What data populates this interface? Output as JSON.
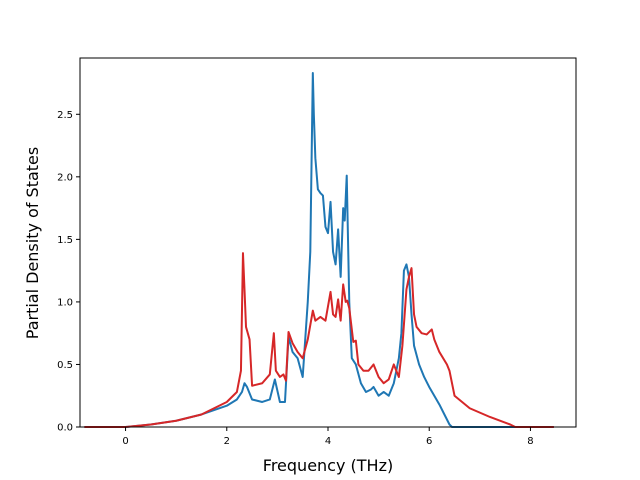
{
  "chart_data": {
    "type": "line",
    "title": "",
    "xlabel": "Frequency (THz)",
    "ylabel": "Partial Density of States",
    "xlim": [
      -0.9,
      8.9
    ],
    "ylim": [
      0.0,
      2.95
    ],
    "xticks": [
      0,
      2,
      4,
      6,
      8
    ],
    "yticks": [
      0.0,
      0.5,
      1.0,
      1.5,
      2.0,
      2.5
    ],
    "xtick_labels": [
      "0",
      "2",
      "4",
      "6",
      "8"
    ],
    "ytick_labels": [
      "0.0",
      "0.5",
      "1.0",
      "1.5",
      "2.0",
      "2.5"
    ],
    "grid": false,
    "series": [
      {
        "color": "#1f77b4",
        "x": [
          -0.8,
          0.0,
          0.5,
          1.0,
          1.5,
          2.0,
          2.2,
          2.3,
          2.35,
          2.4,
          2.5,
          2.7,
          2.85,
          2.95,
          3.05,
          3.15,
          3.22,
          3.3,
          3.4,
          3.5,
          3.6,
          3.65,
          3.7,
          3.72,
          3.75,
          3.8,
          3.85,
          3.9,
          3.95,
          4.0,
          4.05,
          4.1,
          4.15,
          4.2,
          4.25,
          4.3,
          4.33,
          4.37,
          4.42,
          4.47,
          4.55,
          4.65,
          4.75,
          4.85,
          4.9,
          5.0,
          5.1,
          5.2,
          5.3,
          5.4,
          5.45,
          5.5,
          5.55,
          5.6,
          5.65,
          5.7,
          5.8,
          5.9,
          6.0,
          6.1,
          6.2,
          6.3,
          6.4,
          6.45,
          6.55,
          7.0,
          8.45
        ],
        "y": [
          0.0,
          0.0,
          0.02,
          0.05,
          0.1,
          0.17,
          0.22,
          0.28,
          0.35,
          0.32,
          0.22,
          0.2,
          0.22,
          0.38,
          0.2,
          0.2,
          0.72,
          0.6,
          0.55,
          0.4,
          1.0,
          1.4,
          2.83,
          2.5,
          2.15,
          1.9,
          1.87,
          1.85,
          1.6,
          1.55,
          1.8,
          1.4,
          1.3,
          1.58,
          1.2,
          1.75,
          1.65,
          2.01,
          1.0,
          0.55,
          0.5,
          0.35,
          0.28,
          0.3,
          0.32,
          0.25,
          0.28,
          0.25,
          0.35,
          0.55,
          0.75,
          1.25,
          1.3,
          1.2,
          0.9,
          0.65,
          0.5,
          0.4,
          0.32,
          0.25,
          0.18,
          0.1,
          0.02,
          0.0,
          0.0,
          0.0,
          0.0
        ]
      },
      {
        "color": "#d62728",
        "x": [
          -0.8,
          0.0,
          0.5,
          1.0,
          1.5,
          2.0,
          2.2,
          2.28,
          2.32,
          2.35,
          2.38,
          2.45,
          2.5,
          2.7,
          2.85,
          2.93,
          2.97,
          3.05,
          3.12,
          3.17,
          3.22,
          3.3,
          3.4,
          3.5,
          3.6,
          3.7,
          3.75,
          3.85,
          3.95,
          4.05,
          4.1,
          4.15,
          4.2,
          4.25,
          4.3,
          4.35,
          4.38,
          4.42,
          4.5,
          4.55,
          4.6,
          4.7,
          4.8,
          4.9,
          5.0,
          5.1,
          5.2,
          5.3,
          5.4,
          5.47,
          5.55,
          5.6,
          5.65,
          5.7,
          5.75,
          5.85,
          5.95,
          6.05,
          6.1,
          6.2,
          6.35,
          6.4,
          6.5,
          6.8,
          7.2,
          7.6,
          7.7,
          8.45
        ],
        "y": [
          0.0,
          0.0,
          0.02,
          0.05,
          0.1,
          0.2,
          0.28,
          0.45,
          1.39,
          1.1,
          0.8,
          0.7,
          0.33,
          0.35,
          0.42,
          0.75,
          0.45,
          0.4,
          0.42,
          0.37,
          0.76,
          0.67,
          0.6,
          0.55,
          0.7,
          0.93,
          0.85,
          0.88,
          0.85,
          1.08,
          0.9,
          0.88,
          1.02,
          0.85,
          1.14,
          1.0,
          1.01,
          0.95,
          0.68,
          0.69,
          0.5,
          0.45,
          0.45,
          0.5,
          0.4,
          0.35,
          0.38,
          0.5,
          0.4,
          0.65,
          1.1,
          1.2,
          1.27,
          0.9,
          0.8,
          0.75,
          0.74,
          0.78,
          0.7,
          0.6,
          0.5,
          0.45,
          0.25,
          0.15,
          0.08,
          0.02,
          0.0,
          0.0
        ]
      }
    ]
  }
}
